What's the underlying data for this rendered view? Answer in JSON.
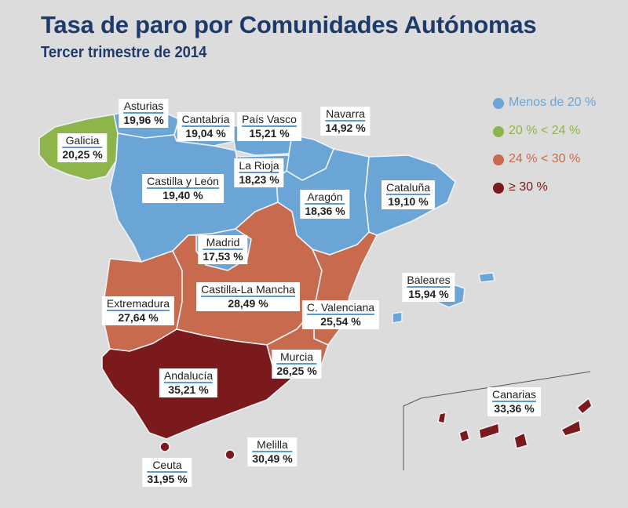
{
  "header": {
    "title": "Tasa de paro por Comunidades Autónomas",
    "subtitle": "Tercer trimestre de 2014"
  },
  "legend": {
    "classes": [
      {
        "label": "Menos de 20 %",
        "color": "#6aa5d6"
      },
      {
        "label": "20 % < 24 %",
        "color": "#8db54c"
      },
      {
        "label": "24 % < 30 %",
        "color": "#c86a4e"
      },
      {
        "label": "≥ 30 %",
        "color": "#7a1a1c"
      }
    ]
  },
  "regions": [
    {
      "name": "Asturias",
      "value": "19,96 %",
      "rate": 19.96
    },
    {
      "name": "Cantabria",
      "value": "19,04 %",
      "rate": 19.04
    },
    {
      "name": "País Vasco",
      "value": "15,21 %",
      "rate": 15.21
    },
    {
      "name": "Navarra",
      "value": "14,92 %",
      "rate": 14.92
    },
    {
      "name": "Galicia",
      "value": "20,25 %",
      "rate": 20.25
    },
    {
      "name": "Castilla y León",
      "value": "19,40 %",
      "rate": 19.4
    },
    {
      "name": "La Rioja",
      "value": "18,23 %",
      "rate": 18.23
    },
    {
      "name": "Aragón",
      "value": "18,36 %",
      "rate": 18.36
    },
    {
      "name": "Cataluña",
      "value": "19,10 %",
      "rate": 19.1
    },
    {
      "name": "Madrid",
      "value": "17,53 %",
      "rate": 17.53
    },
    {
      "name": "Baleares",
      "value": "15,94 %",
      "rate": 15.94
    },
    {
      "name": "Extremadura",
      "value": "27,64 %",
      "rate": 27.64
    },
    {
      "name": "Castilla-La Mancha",
      "value": "28,49 %",
      "rate": 28.49
    },
    {
      "name": "C. Valenciana",
      "value": "25,54 %",
      "rate": 25.54
    },
    {
      "name": "Murcia",
      "value": "26,25 %",
      "rate": 26.25
    },
    {
      "name": "Andalucía",
      "value": "35,21 %",
      "rate": 35.21
    },
    {
      "name": "Canarias",
      "value": "33,36  %",
      "rate": 33.36
    },
    {
      "name": "Ceuta",
      "value": "31,95 %",
      "rate": 31.95
    },
    {
      "name": "Melilla",
      "value": "30,49 %",
      "rate": 30.49
    }
  ]
}
